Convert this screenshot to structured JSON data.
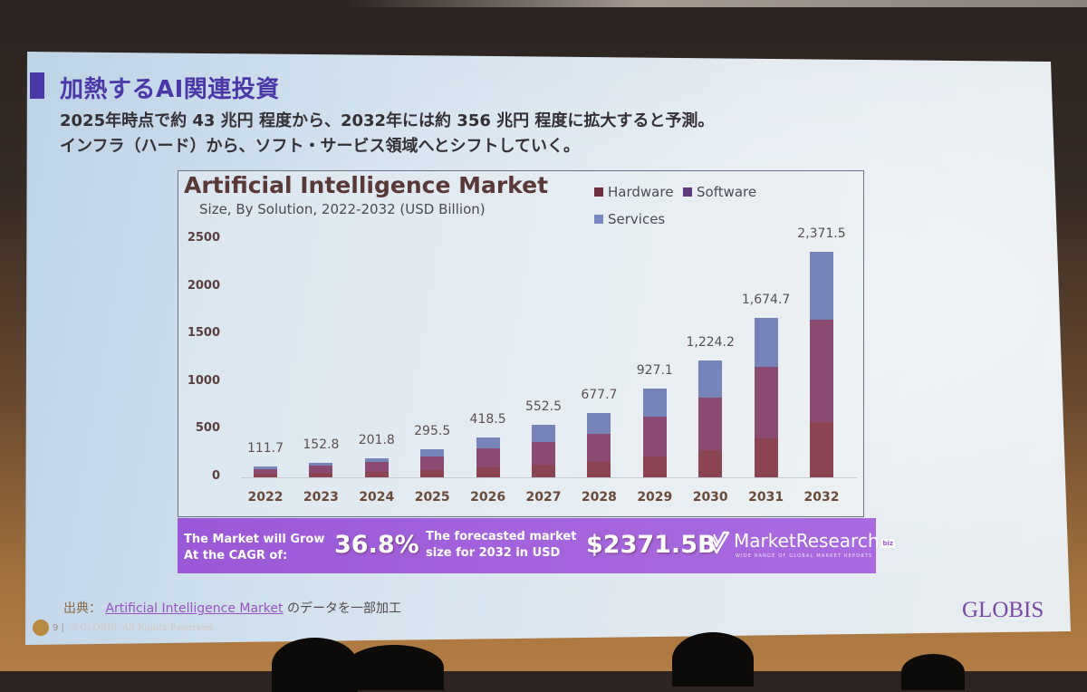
{
  "slide": {
    "title": "加熱するAI関連投資",
    "subtitle_lines": [
      "2025年時点で約 43 兆円 程度から、2032年には約 356 兆円 程度に拡大すると予測。",
      "インフラ（ハード）から、ソフト・サービス領域へとシフトしていく。"
    ],
    "footer": {
      "source_label": "出典：",
      "source_link": "Artificial Intelligence Market",
      "source_suffix": " のデータを一部加工",
      "page_number": "9 |",
      "copyright": "©GLOBIS. All Rights Reserved."
    },
    "brand": "GLOBIS"
  },
  "banner": {
    "cagr_text_line1": "The Market will Grow",
    "cagr_text_line2": "At the CAGR of:",
    "cagr_value": "36.8%",
    "forecast_text_line1": "The forecasted market",
    "forecast_text_line2": "size for 2032 in USD",
    "forecast_value": "$2371.5B",
    "publisher_logo": "MarketResearch",
    "publisher_tag": "biz",
    "publisher_tagline": "WIDE RANGE OF GLOBAL MARKET REPORTS",
    "logo_icon": "check-icon"
  },
  "colors": {
    "title_accent": "#4a38a8",
    "banner": "#a463dc",
    "brand": "#7a4aa6"
  },
  "chart_data": {
    "type": "bar",
    "stacked": true,
    "title": "Artificial Intelligence Market",
    "subtitle": "Size, By Solution, 2022-2032 (USD Billion)",
    "xlabel": "",
    "ylabel": "USD Billion",
    "ylim": [
      0,
      2500
    ],
    "yticks": [
      0,
      500,
      1000,
      1500,
      2000,
      2500
    ],
    "grid": false,
    "legend_position": "top-right",
    "categories": [
      "2022",
      "2023",
      "2024",
      "2025",
      "2026",
      "2027",
      "2028",
      "2029",
      "2030",
      "2031",
      "2032"
    ],
    "totals": [
      111.7,
      152.8,
      201.8,
      295.5,
      418.5,
      552.5,
      677.7,
      927.1,
      1224.2,
      1674.7,
      2371.5
    ],
    "total_labels": [
      "111.7",
      "152.8",
      "201.8",
      "295.5",
      "418.5",
      "552.5",
      "677.7",
      "927.1",
      "1,224.2",
      "1,674.7",
      "2,371.5"
    ],
    "series": [
      {
        "name": "Hardware",
        "color": "#8c4452",
        "legend_color": "#6e2f40",
        "values": [
          35,
          45,
          55,
          75,
          100,
          135,
          160,
          215,
          289,
          407,
          583
        ]
      },
      {
        "name": "Software",
        "color": "#8a4a72",
        "legend_color": "#5c3a7c",
        "values": [
          55,
          78,
          105,
          140,
          200,
          240,
          300,
          420,
          550,
          755,
          1069
        ]
      },
      {
        "name": "Services",
        "color": "#7684ba",
        "legend_color": "#7a88c2",
        "values": [
          21.7,
          29.8,
          41.8,
          80.5,
          118.5,
          177.5,
          217.7,
          292.1,
          385.2,
          512.7,
          719.5
        ]
      }
    ]
  }
}
